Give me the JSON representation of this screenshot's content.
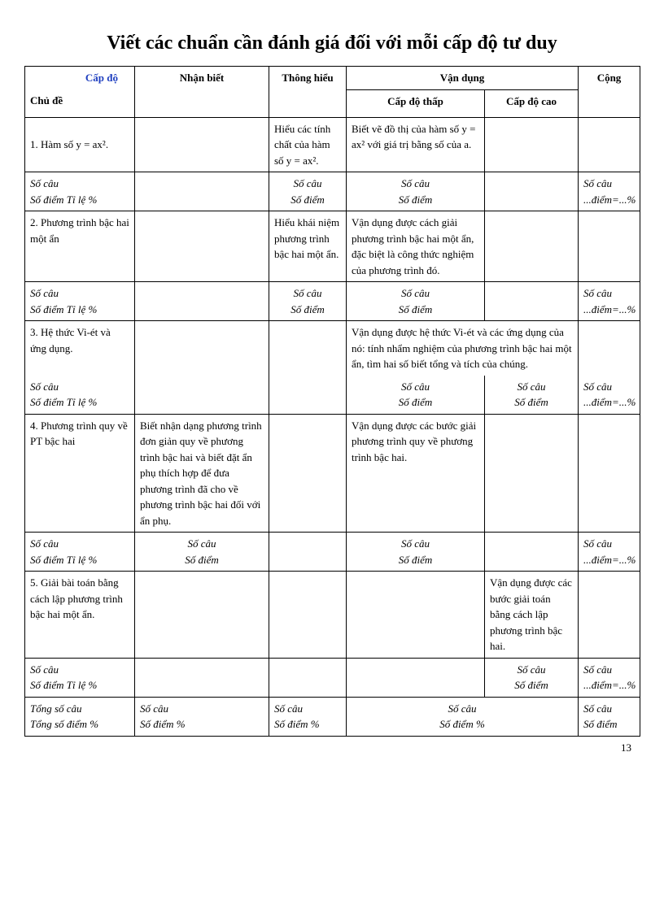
{
  "title": "Viết các chuẩn cần đánh giá đối với mỗi cấp độ tư duy",
  "header": {
    "cap_do": "Cấp độ",
    "chu_de": "Chủ đề",
    "nhan_biet": "Nhận biết",
    "thong_hieu": "Thông hiểu",
    "van_dung": "Vận dụng",
    "cong": "Cộng",
    "cap_do_thap": "Cấp độ thấp",
    "cap_do_cao": "Cấp độ cao"
  },
  "row1": {
    "topic": "1. Hàm số  y = ax².",
    "thong_hieu": "Hiểu các tính chất của hàm số  y = ax².",
    "thap": "Biết vẽ đồ thị của hàm số y = ax² với giá trị bằng số của a.",
    "stat_left": "Số câu\nSố điểm     Tỉ lệ %",
    "stat_th": "Số câu\nSố điểm",
    "stat_thap": "Số câu\nSố điểm",
    "stat_cong": "Số câu\n...điểm=...%"
  },
  "row2": {
    "topic": "2. Phương trình bậc hai một ẩn",
    "thong_hieu": "Hiểu khái niệm phương trình bậc hai một ẩn.",
    "thap": "Vận dụng được cách giải phương trình bậc hai một ẩn, đặc biệt là công thức nghiệm của phương trình đó.",
    "stat_left": "Số câu\nSố điểm     Tỉ lệ %",
    "stat_th": "Số câu\nSố điểm",
    "stat_thap": "Số câu\nSố điểm",
    "stat_cong": "Số câu\n...điểm=...%"
  },
  "row3": {
    "topic": "3.  Hệ thức Vi-ét và ứng dụng.",
    "van_dung": "Vận dụng được hệ thức Vi-ét và các ứng dụng của nó: tính nhẩm nghiệm của phương trình bậc hai một ẩn, tìm hai số biết tổng và tích của chúng.",
    "stat_left": "Số câu\nSố điểm     Tỉ lệ %",
    "stat_thap": "Số câu\nSố điểm",
    "stat_cao": "Số câu\nSố điểm",
    "stat_cong": "Số câu\n...điểm=...%"
  },
  "row4": {
    "topic": "4. Phương trình quy về PT bậc hai",
    "nhan_biet": "Biết nhận dạng phương trình đơn giản quy về phương trình bậc hai và biết đặt ẩn phụ thích hợp để đưa phương trình đã cho về phương trình bậc hai đối với ẩn phụ.",
    "thap": "Vận dụng được các bước giải phương trình quy về phương trình bậc hai.",
    "stat_left": "Số câu\nSố điểm     Tỉ lệ %",
    "stat_nb": "Số câu\nSố điểm",
    "stat_thap": "Số câu\nSố điểm",
    "stat_cong": "Số câu\n...điểm=...%"
  },
  "row5": {
    "topic": "5. Giải bài toán bằng cách lập phương trình  bậc hai một ẩn.",
    "cao": "Vận dụng được các bước giải toán bằng cách lập phương trình bậc hai.",
    "stat_left": "Số câu\nSố điểm     Tỉ lệ %",
    "stat_cao": "Số câu\nSố điểm",
    "stat_cong": "Số câu\n...điểm=...%"
  },
  "total": {
    "left": "Tổng số câu\nTổng số điểm     %",
    "nb": "Số câu\nSố điểm              %",
    "th": "Số câu\nSố điểm     %",
    "vd": "Số câu\nSố điểm               %",
    "cong": "Số câu\nSố điểm"
  },
  "page": "13"
}
